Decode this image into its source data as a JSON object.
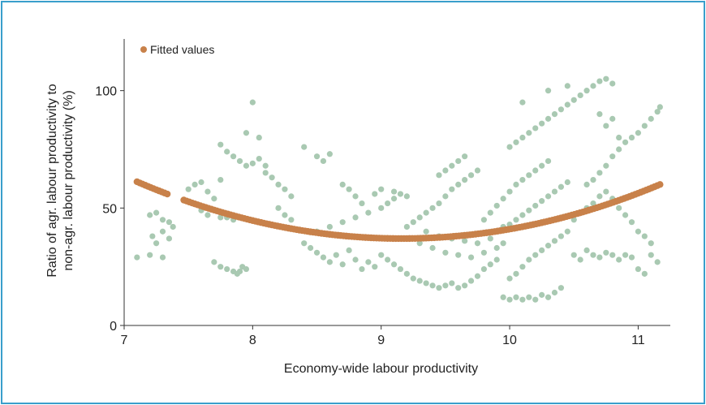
{
  "chart_data": {
    "type": "scatter",
    "xlabel": "Economy-wide labour productivity",
    "ylabel_lines": [
      "Ratio of agr. labour productivity to",
      "non-agr. labour productivity (%)"
    ],
    "xlim": [
      7,
      11.25
    ],
    "ylim": [
      0,
      122
    ],
    "x_ticks": [
      7,
      8,
      9,
      10,
      11
    ],
    "x_tick_labels": [
      "7",
      "8",
      "9",
      "10",
      "11"
    ],
    "y_ticks": [
      0,
      50,
      100
    ],
    "y_tick_labels": [
      "0",
      "50",
      "100"
    ],
    "grid": false,
    "legend": {
      "position": "top-left",
      "entries": [
        "Fitted values"
      ]
    },
    "colors": {
      "scatter": "#a9c9b2",
      "fitted": "#c8814a",
      "frame": "#3a9fcc",
      "axis": "#333333"
    },
    "series": [
      {
        "type": "scatter",
        "points": [
          [
            7.1,
            29
          ],
          [
            7.2,
            30
          ],
          [
            7.3,
            29
          ],
          [
            7.2,
            47
          ],
          [
            7.25,
            48
          ],
          [
            7.3,
            45
          ],
          [
            7.35,
            44
          ],
          [
            7.3,
            40
          ],
          [
            7.35,
            37
          ],
          [
            7.22,
            38
          ],
          [
            7.25,
            35
          ],
          [
            7.38,
            42
          ],
          [
            7.5,
            58
          ],
          [
            7.55,
            60
          ],
          [
            7.6,
            61
          ],
          [
            7.65,
            57
          ],
          [
            7.7,
            54
          ],
          [
            7.75,
            62
          ],
          [
            7.6,
            49
          ],
          [
            7.65,
            47
          ],
          [
            7.75,
            46
          ],
          [
            7.8,
            46
          ],
          [
            7.85,
            45
          ],
          [
            7.7,
            27
          ],
          [
            7.75,
            25
          ],
          [
            7.8,
            24
          ],
          [
            7.85,
            23
          ],
          [
            7.9,
            23
          ],
          [
            7.95,
            24
          ],
          [
            7.88,
            22
          ],
          [
            7.92,
            25
          ],
          [
            7.75,
            77
          ],
          [
            7.8,
            74
          ],
          [
            7.85,
            72
          ],
          [
            7.9,
            70
          ],
          [
            7.95,
            68
          ],
          [
            8.0,
            69
          ],
          [
            8.05,
            71
          ],
          [
            8.1,
            68
          ],
          [
            7.95,
            82
          ],
          [
            8.0,
            95
          ],
          [
            8.05,
            80
          ],
          [
            8.1,
            65
          ],
          [
            8.15,
            63
          ],
          [
            8.2,
            60
          ],
          [
            8.25,
            58
          ],
          [
            8.3,
            55
          ],
          [
            8.2,
            50
          ],
          [
            8.25,
            47
          ],
          [
            8.3,
            45
          ],
          [
            8.4,
            76
          ],
          [
            8.5,
            72
          ],
          [
            8.55,
            70
          ],
          [
            8.6,
            73
          ],
          [
            8.4,
            35
          ],
          [
            8.45,
            33
          ],
          [
            8.5,
            31
          ],
          [
            8.55,
            29
          ],
          [
            8.6,
            27
          ],
          [
            8.65,
            30
          ],
          [
            8.7,
            26
          ],
          [
            8.75,
            32
          ],
          [
            8.8,
            28
          ],
          [
            8.85,
            24
          ],
          [
            8.9,
            27
          ],
          [
            8.95,
            25
          ],
          [
            8.5,
            40
          ],
          [
            8.6,
            42
          ],
          [
            8.7,
            44
          ],
          [
            8.8,
            46
          ],
          [
            8.9,
            48
          ],
          [
            9.0,
            50
          ],
          [
            9.05,
            52
          ],
          [
            9.1,
            54
          ],
          [
            9.15,
            56
          ],
          [
            9.2,
            55
          ],
          [
            8.7,
            60
          ],
          [
            8.75,
            58
          ],
          [
            8.8,
            55
          ],
          [
            8.85,
            52
          ],
          [
            8.95,
            56
          ],
          [
            9.0,
            58
          ],
          [
            9.1,
            57
          ],
          [
            9.0,
            30
          ],
          [
            9.05,
            28
          ],
          [
            9.1,
            26
          ],
          [
            9.15,
            24
          ],
          [
            9.2,
            22
          ],
          [
            9.25,
            20
          ],
          [
            9.3,
            19
          ],
          [
            9.35,
            18
          ],
          [
            9.4,
            17
          ],
          [
            9.45,
            16
          ],
          [
            9.5,
            17
          ],
          [
            9.55,
            18
          ],
          [
            9.6,
            16
          ],
          [
            9.65,
            17
          ],
          [
            9.7,
            19
          ],
          [
            9.75,
            21
          ],
          [
            9.8,
            24
          ],
          [
            9.85,
            26
          ],
          [
            9.9,
            28
          ],
          [
            9.2,
            42
          ],
          [
            9.25,
            44
          ],
          [
            9.3,
            46
          ],
          [
            9.35,
            48
          ],
          [
            9.4,
            50
          ],
          [
            9.45,
            52
          ],
          [
            9.5,
            55
          ],
          [
            9.55,
            58
          ],
          [
            9.6,
            60
          ],
          [
            9.65,
            62
          ],
          [
            9.7,
            64
          ],
          [
            9.75,
            66
          ],
          [
            9.55,
            68
          ],
          [
            9.6,
            70
          ],
          [
            9.65,
            72
          ],
          [
            9.5,
            66
          ],
          [
            9.45,
            64
          ],
          [
            9.8,
            45
          ],
          [
            9.85,
            48
          ],
          [
            9.9,
            51
          ],
          [
            9.95,
            54
          ],
          [
            10.0,
            57
          ],
          [
            10.05,
            60
          ],
          [
            10.1,
            62
          ],
          [
            10.15,
            64
          ],
          [
            10.2,
            66
          ],
          [
            10.25,
            68
          ],
          [
            10.3,
            70
          ],
          [
            10.0,
            76
          ],
          [
            10.05,
            78
          ],
          [
            10.1,
            80
          ],
          [
            10.15,
            82
          ],
          [
            10.2,
            84
          ],
          [
            10.25,
            86
          ],
          [
            10.3,
            88
          ],
          [
            10.35,
            90
          ],
          [
            10.4,
            92
          ],
          [
            10.45,
            94
          ],
          [
            10.5,
            96
          ],
          [
            10.55,
            98
          ],
          [
            10.6,
            100
          ],
          [
            10.65,
            102
          ],
          [
            10.7,
            104
          ],
          [
            10.75,
            105
          ],
          [
            10.8,
            103
          ],
          [
            9.95,
            12
          ],
          [
            10.0,
            11
          ],
          [
            10.05,
            12
          ],
          [
            10.1,
            11
          ],
          [
            10.15,
            12
          ],
          [
            10.2,
            11
          ],
          [
            10.25,
            13
          ],
          [
            10.3,
            12
          ],
          [
            10.35,
            14
          ],
          [
            10.4,
            16
          ],
          [
            10.0,
            20
          ],
          [
            10.05,
            22
          ],
          [
            10.1,
            25
          ],
          [
            10.15,
            28
          ],
          [
            10.2,
            30
          ],
          [
            10.25,
            32
          ],
          [
            10.3,
            34
          ],
          [
            10.35,
            36
          ],
          [
            10.4,
            38
          ],
          [
            10.45,
            40
          ],
          [
            10.5,
            30
          ],
          [
            10.55,
            28
          ],
          [
            10.6,
            32
          ],
          [
            10.65,
            30
          ],
          [
            10.7,
            29
          ],
          [
            10.75,
            31
          ],
          [
            10.8,
            30
          ],
          [
            10.85,
            28
          ],
          [
            10.9,
            30
          ],
          [
            10.95,
            29
          ],
          [
            11.0,
            24
          ],
          [
            11.05,
            22
          ],
          [
            11.1,
            30
          ],
          [
            11.15,
            27
          ],
          [
            10.6,
            60
          ],
          [
            10.65,
            62
          ],
          [
            10.7,
            65
          ],
          [
            10.75,
            68
          ],
          [
            10.8,
            72
          ],
          [
            10.85,
            75
          ],
          [
            10.9,
            78
          ],
          [
            10.95,
            80
          ],
          [
            11.0,
            82
          ],
          [
            11.05,
            85
          ],
          [
            11.1,
            88
          ],
          [
            11.15,
            91
          ],
          [
            11.17,
            93
          ],
          [
            10.5,
            45
          ],
          [
            10.55,
            48
          ],
          [
            10.6,
            50
          ],
          [
            10.65,
            52
          ],
          [
            10.7,
            55
          ],
          [
            10.75,
            57
          ],
          [
            10.8,
            54
          ],
          [
            10.85,
            50
          ],
          [
            10.9,
            47
          ],
          [
            10.95,
            44
          ],
          [
            11.0,
            40
          ],
          [
            11.05,
            38
          ],
          [
            11.1,
            35
          ],
          [
            10.1,
            95
          ],
          [
            10.3,
            100
          ],
          [
            10.45,
            102
          ],
          [
            10.7,
            90
          ],
          [
            10.75,
            85
          ],
          [
            10.8,
            88
          ],
          [
            10.85,
            80
          ],
          [
            9.3,
            35
          ],
          [
            9.4,
            33
          ],
          [
            9.5,
            31
          ],
          [
            9.6,
            30
          ],
          [
            9.7,
            29
          ],
          [
            9.8,
            31
          ],
          [
            9.9,
            33
          ],
          [
            9.95,
            35
          ],
          [
            9.35,
            40
          ],
          [
            9.45,
            38
          ],
          [
            9.55,
            37
          ],
          [
            9.65,
            36
          ],
          [
            9.75,
            35
          ],
          [
            9.85,
            37
          ],
          [
            9.9,
            40
          ],
          [
            9.95,
            42
          ],
          [
            10.0,
            43
          ],
          [
            10.05,
            45
          ],
          [
            10.1,
            47
          ],
          [
            10.15,
            49
          ],
          [
            10.2,
            51
          ],
          [
            10.25,
            53
          ],
          [
            10.3,
            55
          ],
          [
            10.35,
            57
          ],
          [
            10.4,
            59
          ],
          [
            10.45,
            61
          ]
        ]
      },
      {
        "type": "fitted",
        "name": "Fitted values",
        "coefficients": {
          "a": 5.7,
          "h": 9.16,
          "k": 37
        },
        "x_range": [
          7.1,
          11.17
        ]
      }
    ]
  }
}
